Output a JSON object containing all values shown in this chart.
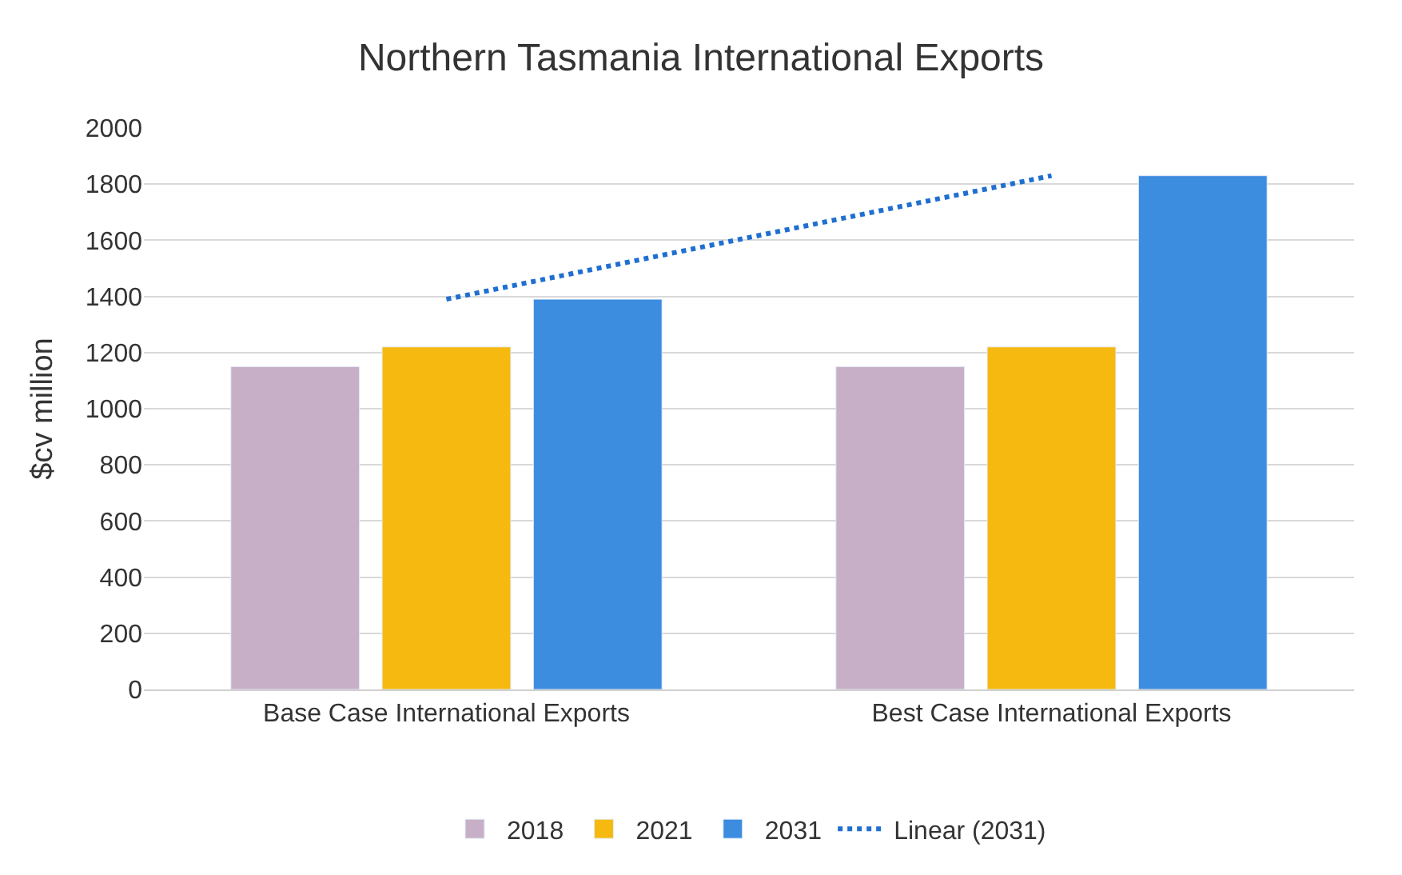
{
  "chart_data": {
    "type": "bar",
    "title": "Northern Tasmania International Exports",
    "ylabel": "$cv million",
    "categories": [
      "Base Case International Exports",
      "Best Case International Exports"
    ],
    "series": [
      {
        "name": "2018",
        "color": "#c8afc8",
        "values": [
          1150,
          1150
        ]
      },
      {
        "name": "2021",
        "color": "#f5b90f",
        "values": [
          1220,
          1220
        ]
      },
      {
        "name": "2031",
        "color": "#3c8ce0",
        "values": [
          1390,
          1830
        ]
      },
      {
        "name": "Linear (2031)",
        "type": "line",
        "color": "#1f6fd0",
        "line_style": "dotted",
        "values": [
          1390,
          1830
        ]
      }
    ],
    "ylim": [
      0,
      2000
    ],
    "yticks": [
      0,
      200,
      400,
      600,
      800,
      1000,
      1200,
      1400,
      1600,
      1800,
      2000
    ],
    "grid": "y",
    "legend": "bottom"
  }
}
